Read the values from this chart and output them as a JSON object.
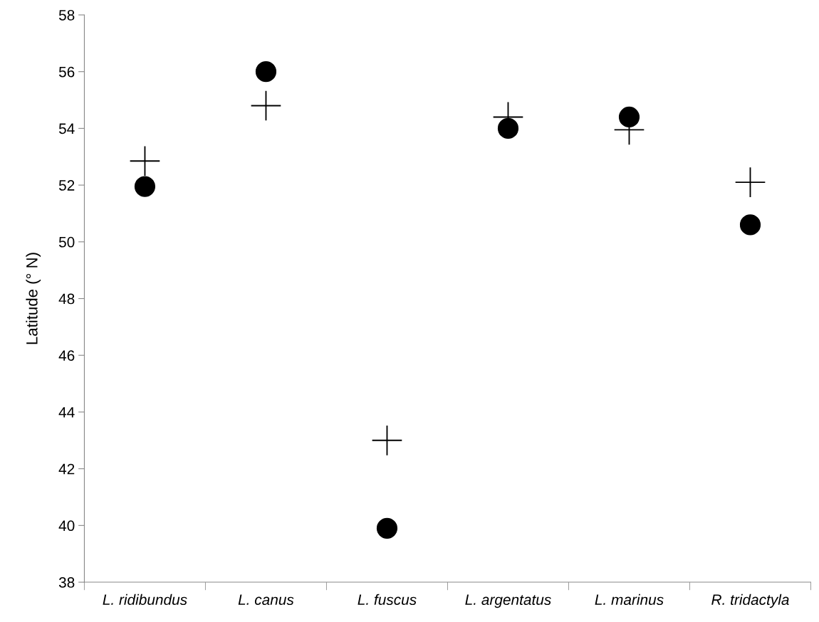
{
  "chart_data": {
    "type": "scatter",
    "ylabel": "Latitude (° N)",
    "categories": [
      "L. ridibundus",
      "L. canus",
      "L. fuscus",
      "L. argentatus",
      "L. marinus",
      "R. tridactyla"
    ],
    "series": [
      {
        "color": "#000000",
        "marker": "cross",
        "values": [
          52.85,
          54.8,
          43.0,
          54.4,
          53.95,
          52.1
        ]
      },
      {
        "color": "#000000",
        "marker": "circle",
        "values": [
          51.95,
          56.0,
          39.9,
          54.0,
          54.4,
          50.6
        ]
      }
    ],
    "ylim": [
      38,
      58
    ],
    "yticks": [
      38,
      40,
      42,
      44,
      46,
      48,
      50,
      52,
      54,
      56,
      58
    ],
    "grid": false,
    "legend": false
  }
}
